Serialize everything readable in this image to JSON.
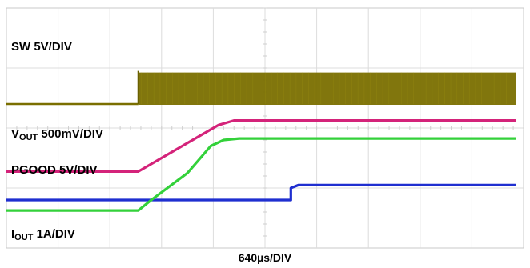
{
  "chart_data": {
    "type": "line",
    "xlabel": "640µs/DIV",
    "x_divisions": 10,
    "y_divisions": 8,
    "grid": true,
    "x_units": "divisions",
    "series": [
      {
        "name": "SW 5V/DIV",
        "color": "#7a6f00",
        "style": "switching-band",
        "low_div": 0.8,
        "high_div": 1.85,
        "switching_start_div": 2.55,
        "points": [
          [
            0,
            0.8
          ],
          [
            2.55,
            0.8
          ],
          [
            2.55,
            1.85
          ],
          [
            9.85,
            1.85
          ]
        ]
      },
      {
        "name": "VOUT 500mV/DIV",
        "color": "#d4237a",
        "points": [
          [
            0,
            -1.45
          ],
          [
            2.55,
            -1.45
          ],
          [
            2.7,
            -1.3
          ],
          [
            3.4,
            -0.6
          ],
          [
            4.1,
            0.1
          ],
          [
            4.4,
            0.25
          ],
          [
            9.85,
            0.25
          ]
        ]
      },
      {
        "name": "PGOOD 5V/DIV",
        "color": "#1f2fd0",
        "points": [
          [
            0,
            -2.4
          ],
          [
            5.5,
            -2.4
          ],
          [
            5.5,
            -2.0
          ],
          [
            5.65,
            -1.9
          ],
          [
            9.85,
            -1.9
          ]
        ]
      },
      {
        "name": "IOUT 1A/DIV",
        "color": "#33d13a",
        "points": [
          [
            0,
            -2.75
          ],
          [
            2.55,
            -2.75
          ],
          [
            2.8,
            -2.4
          ],
          [
            3.5,
            -1.5
          ],
          [
            3.95,
            -0.6
          ],
          [
            4.2,
            -0.4
          ],
          [
            4.5,
            -0.35
          ],
          [
            9.85,
            -0.35
          ]
        ]
      }
    ]
  },
  "labels": {
    "sw": {
      "main": "SW 5V/DIV"
    },
    "vout": {
      "main": "V",
      "sub": "OUT",
      "rest": " 500mV/DIV"
    },
    "pgood": {
      "main": "PGOOD 5V/DIV"
    },
    "iout": {
      "main": "I",
      "sub": "OUT",
      "rest": " 1A/DIV"
    }
  }
}
